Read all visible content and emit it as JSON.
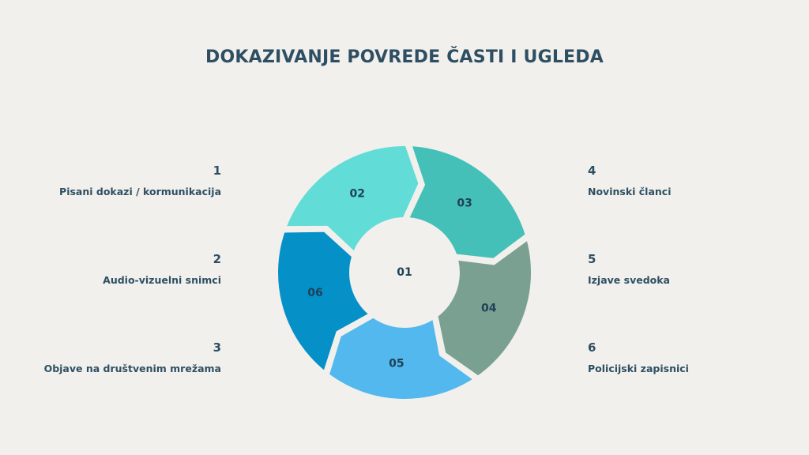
{
  "title": "DOKAZIVANJE POVREDE ČASTI I UGLEDA",
  "left_items": [
    {
      "number": "1",
      "label": "Pisani dokazi / kormunikacija"
    },
    {
      "number": "2",
      "label": "Audio-vizuelni snimci"
    },
    {
      "number": "3",
      "label": "Objave na društvenim mrežama"
    }
  ],
  "right_items": [
    {
      "number": "4",
      "label": "Novinski članci"
    },
    {
      "number": "5",
      "label": "Izjave svedoka"
    },
    {
      "number": "6",
      "label": "Policijski zapisnici"
    }
  ],
  "chart_data": {
    "type": "cycle",
    "center_label": "01",
    "center": [
      512,
      345
    ],
    "outer_radius": 160,
    "inner_radius": 68,
    "segments": [
      {
        "label": "02",
        "start_angle": -160,
        "end_angle": -88,
        "color": "#62DCD6"
      },
      {
        "label": "03",
        "start_angle": -88,
        "end_angle": -16,
        "color": "#45C0B8"
      },
      {
        "label": "04",
        "start_angle": -16,
        "end_angle": 56,
        "color": "#7AA092"
      },
      {
        "label": "05",
        "start_angle": 56,
        "end_angle": 128,
        "color": "#52B8EE"
      },
      {
        "label": "06",
        "start_angle": 128,
        "end_angle": 200,
        "color": "#0590C8"
      }
    ],
    "background": "#F1F0EC",
    "text_color": "#2E4F63"
  }
}
